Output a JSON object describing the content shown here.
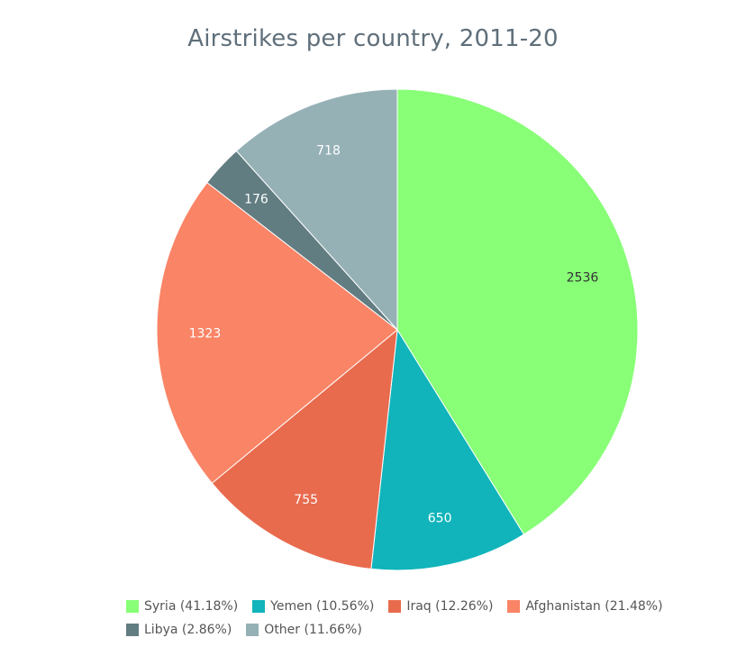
{
  "chart_data": {
    "type": "pie",
    "title": "Airstrikes per country, 2011-20",
    "slices": [
      {
        "name": "Syria",
        "value": 2536,
        "percent_label": "(41.18%)",
        "color": "#88ff77",
        "label_color": "#333333"
      },
      {
        "name": "Yemen",
        "value": 650,
        "percent_label": "(10.56%)",
        "color": "#10b4ba",
        "label_color": "#ffffff"
      },
      {
        "name": "Iraq",
        "value": 755,
        "percent_label": "(12.26%)",
        "color": "#e86b4e",
        "label_color": "#ffffff"
      },
      {
        "name": "Afghanistan",
        "value": 1323,
        "percent_label": "(21.48%)",
        "color": "#fa8466",
        "label_color": "#ffffff"
      },
      {
        "name": "Libya",
        "value": 176,
        "percent_label": "(2.86%)",
        "color": "#627d82",
        "label_color": "#ffffff"
      },
      {
        "name": "Other",
        "value": 718,
        "percent_label": "(11.66%)",
        "color": "#95b1b6",
        "label_color": "#ffffff"
      }
    ],
    "legend_position": "bottom"
  }
}
